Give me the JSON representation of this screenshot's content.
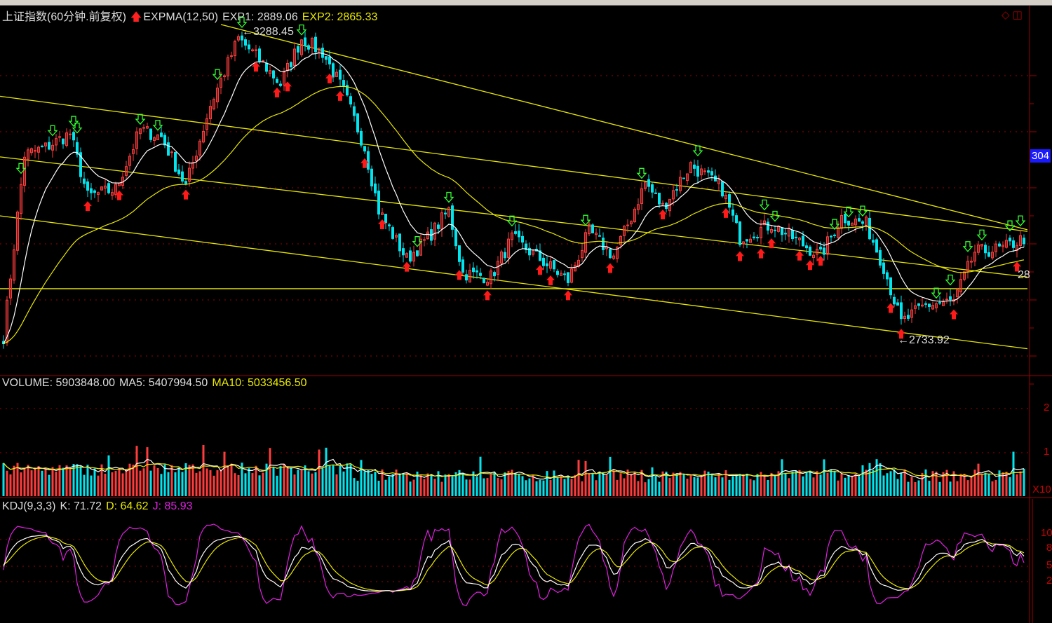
{
  "header": {
    "title": "上证指数(60分钟.前复权)",
    "indicator": "EXPMA(12,50)",
    "exp1": "EXP1: 2889.06",
    "exp2": "EXP2: 2865.33"
  },
  "volume_header": {
    "volume": "VOLUME: 5903848.00",
    "ma5": "MA5: 5407994.50",
    "ma10": "MA10: 5033456.50"
  },
  "kdj_header": {
    "name": "KDJ(9,3,3)",
    "k": "K: 71.72",
    "d": "D: 64.62",
    "j": "J: 85.93"
  },
  "annotations": {
    "high": "3288.45",
    "low": "2733.92",
    "right_price_label": "304",
    "right_edge_label": "28"
  },
  "axes": {
    "volume_ticks": [
      "2",
      "1"
    ],
    "volume_unit": "X10",
    "kdj_ticks": [
      "10",
      "8",
      "5",
      "2"
    ]
  },
  "colors": {
    "up": "#ff3c3c",
    "down": "#00e5ee",
    "exp1": "#ffffff",
    "exp2": "#e8e800",
    "trendline": "#e8e800",
    "grid": "#a00000",
    "kdj_k": "#ffffff",
    "kdj_d": "#e8e800",
    "kdj_j": "#e020e0"
  },
  "chart_data": {
    "type": "candlestick",
    "bars": 292,
    "ylim": [
      2700,
      3330
    ],
    "close_keypoints": [
      [
        0,
        2740
      ],
      [
        6,
        3067
      ],
      [
        12,
        3080
      ],
      [
        19,
        3105
      ],
      [
        24,
        2992
      ],
      [
        32,
        3005
      ],
      [
        39,
        3112
      ],
      [
        45,
        3099
      ],
      [
        52,
        3011
      ],
      [
        59,
        3156
      ],
      [
        67,
        3276
      ],
      [
        73,
        3238
      ],
      [
        79,
        3194
      ],
      [
        85,
        3276
      ],
      [
        91,
        3251
      ],
      [
        97,
        3181
      ],
      [
        103,
        3080
      ],
      [
        107,
        2967
      ],
      [
        115,
        2879
      ],
      [
        121,
        2917
      ],
      [
        127,
        2967
      ],
      [
        131,
        2854
      ],
      [
        139,
        2847
      ],
      [
        145,
        2917
      ],
      [
        153,
        2879
      ],
      [
        161,
        2841
      ],
      [
        167,
        2929
      ],
      [
        174,
        2885
      ],
      [
        179,
        2955
      ],
      [
        183,
        3017
      ],
      [
        188,
        2973
      ],
      [
        196,
        3049
      ],
      [
        205,
        3005
      ],
      [
        210,
        2917
      ],
      [
        219,
        2942
      ],
      [
        227,
        2910
      ],
      [
        233,
        2885
      ],
      [
        239,
        2955
      ],
      [
        246,
        2942
      ],
      [
        251,
        2866
      ],
      [
        256,
        2765
      ],
      [
        263,
        2797
      ],
      [
        271,
        2803
      ],
      [
        277,
        2892
      ],
      [
        285,
        2898
      ],
      [
        291,
        2917
      ]
    ],
    "trendlines": [
      {
        "from": [
          62,
          3301
        ],
        "to": [
          292,
          2932
        ]
      },
      {
        "from": [
          -1,
          3172
        ],
        "to": [
          292,
          2929
        ]
      },
      {
        "from": [
          -1,
          3063
        ],
        "to": [
          292,
          2847
        ]
      },
      {
        "from": [
          -1,
          2957
        ],
        "to": [
          292,
          2718
        ]
      },
      {
        "from": [
          -1,
          2826
        ],
        "to": [
          292,
          2826
        ]
      }
    ],
    "buy_signals": [
      24,
      33,
      52,
      72,
      78,
      81,
      93,
      96,
      103,
      108,
      115,
      130,
      138,
      153,
      156,
      161,
      173,
      188,
      206,
      210,
      216,
      219,
      227,
      230,
      233,
      253,
      256,
      271,
      289
    ],
    "sell_signals": [
      5,
      14,
      20,
      21,
      39,
      44,
      61,
      68,
      85,
      118,
      127,
      145,
      166,
      182,
      198,
      217,
      220,
      237,
      241,
      245,
      266,
      270,
      275,
      279,
      287,
      290
    ],
    "series": [
      {
        "name": "EXP1",
        "period": 12,
        "last": 2889.06
      },
      {
        "name": "EXP2",
        "period": 50,
        "last": 2865.33
      }
    ],
    "volume": {
      "unit": 10000000,
      "last": 5903848.0,
      "ma5_last": 5407994.5,
      "ma10_last": 5033456.5
    },
    "kdj": {
      "k": 71.72,
      "d": 64.62,
      "j": 85.93
    }
  }
}
